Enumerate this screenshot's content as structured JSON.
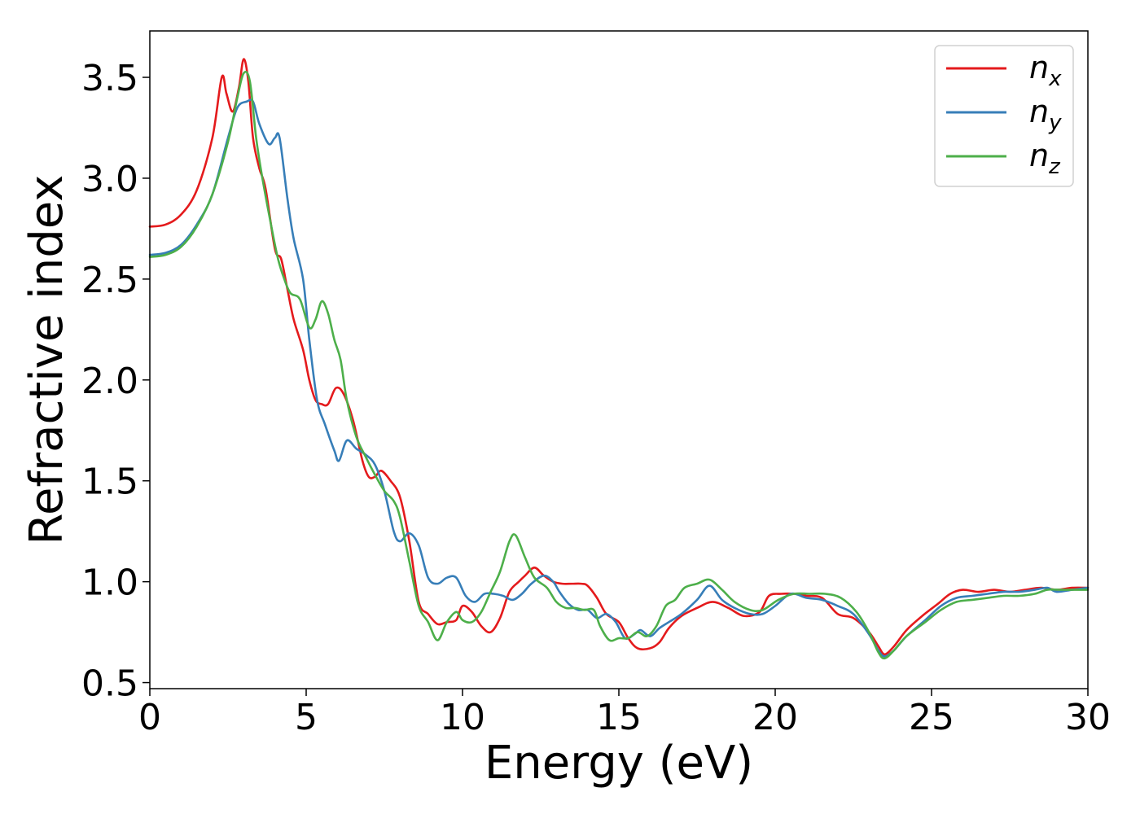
{
  "chart_data": {
    "type": "line",
    "title": "",
    "xlabel": "Energy (eV)",
    "ylabel": "Refractive index",
    "xlim": [
      0,
      30
    ],
    "ylim": [
      0.47,
      3.73
    ],
    "xticks": [
      0,
      5,
      10,
      15,
      20,
      25,
      30
    ],
    "xtick_labels": [
      "0",
      "5",
      "10",
      "15",
      "20",
      "25",
      "30"
    ],
    "yticks": [
      0.5,
      1.0,
      1.5,
      2.0,
      2.5,
      3.0,
      3.5
    ],
    "ytick_labels": [
      "0.5",
      "1.0",
      "1.5",
      "2.0",
      "2.5",
      "3.0",
      "3.5"
    ],
    "grid": false,
    "legend_position": "top-right",
    "series": [
      {
        "name": "n_x",
        "label_base": "n",
        "label_sub": "x",
        "color": "#e41a1c",
        "points": [
          [
            0,
            2.76
          ],
          [
            0.5,
            2.77
          ],
          [
            1.0,
            2.82
          ],
          [
            1.5,
            2.94
          ],
          [
            2.0,
            3.2
          ],
          [
            2.3,
            3.5
          ],
          [
            2.45,
            3.42
          ],
          [
            2.65,
            3.33
          ],
          [
            2.85,
            3.45
          ],
          [
            3.0,
            3.59
          ],
          [
            3.15,
            3.48
          ],
          [
            3.3,
            3.2
          ],
          [
            3.5,
            3.05
          ],
          [
            3.7,
            2.95
          ],
          [
            4.0,
            2.65
          ],
          [
            4.2,
            2.6
          ],
          [
            4.4,
            2.45
          ],
          [
            4.6,
            2.3
          ],
          [
            4.9,
            2.15
          ],
          [
            5.1,
            2.0
          ],
          [
            5.3,
            1.9
          ],
          [
            5.5,
            1.88
          ],
          [
            5.7,
            1.88
          ],
          [
            5.95,
            1.96
          ],
          [
            6.2,
            1.93
          ],
          [
            6.5,
            1.8
          ],
          [
            6.8,
            1.6
          ],
          [
            7.0,
            1.52
          ],
          [
            7.2,
            1.52
          ],
          [
            7.4,
            1.55
          ],
          [
            7.7,
            1.5
          ],
          [
            8.0,
            1.42
          ],
          [
            8.3,
            1.2
          ],
          [
            8.6,
            0.9
          ],
          [
            8.9,
            0.84
          ],
          [
            9.2,
            0.79
          ],
          [
            9.5,
            0.8
          ],
          [
            9.8,
            0.81
          ],
          [
            10.0,
            0.88
          ],
          [
            10.3,
            0.85
          ],
          [
            10.6,
            0.78
          ],
          [
            10.9,
            0.75
          ],
          [
            11.2,
            0.82
          ],
          [
            11.5,
            0.95
          ],
          [
            11.8,
            1.0
          ],
          [
            12.0,
            1.03
          ],
          [
            12.3,
            1.07
          ],
          [
            12.6,
            1.03
          ],
          [
            12.9,
            1.0
          ],
          [
            13.2,
            0.99
          ],
          [
            13.5,
            0.99
          ],
          [
            13.8,
            0.99
          ],
          [
            14.0,
            0.98
          ],
          [
            14.3,
            0.92
          ],
          [
            14.6,
            0.84
          ],
          [
            15.0,
            0.8
          ],
          [
            15.3,
            0.72
          ],
          [
            15.6,
            0.67
          ],
          [
            16.0,
            0.67
          ],
          [
            16.3,
            0.7
          ],
          [
            16.6,
            0.77
          ],
          [
            17.0,
            0.83
          ],
          [
            17.5,
            0.87
          ],
          [
            18.0,
            0.9
          ],
          [
            18.5,
            0.87
          ],
          [
            19.0,
            0.83
          ],
          [
            19.5,
            0.85
          ],
          [
            19.8,
            0.93
          ],
          [
            20.2,
            0.94
          ],
          [
            20.6,
            0.94
          ],
          [
            21.0,
            0.93
          ],
          [
            21.5,
            0.92
          ],
          [
            22.0,
            0.84
          ],
          [
            22.5,
            0.82
          ],
          [
            23.0,
            0.75
          ],
          [
            23.3,
            0.68
          ],
          [
            23.5,
            0.64
          ],
          [
            23.8,
            0.68
          ],
          [
            24.2,
            0.76
          ],
          [
            24.7,
            0.83
          ],
          [
            25.2,
            0.89
          ],
          [
            25.6,
            0.94
          ],
          [
            26.0,
            0.96
          ],
          [
            26.5,
            0.95
          ],
          [
            27.0,
            0.96
          ],
          [
            27.5,
            0.95
          ],
          [
            28.0,
            0.96
          ],
          [
            28.5,
            0.97
          ],
          [
            29.0,
            0.96
          ],
          [
            29.5,
            0.97
          ],
          [
            30,
            0.97
          ]
        ]
      },
      {
        "name": "n_y",
        "label_base": "n",
        "label_sub": "y",
        "color": "#377eb8",
        "points": [
          [
            0,
            2.62
          ],
          [
            0.5,
            2.63
          ],
          [
            1.0,
            2.67
          ],
          [
            1.5,
            2.77
          ],
          [
            2.0,
            2.92
          ],
          [
            2.5,
            3.2
          ],
          [
            2.8,
            3.35
          ],
          [
            3.1,
            3.38
          ],
          [
            3.3,
            3.38
          ],
          [
            3.5,
            3.27
          ],
          [
            3.8,
            3.17
          ],
          [
            4.0,
            3.2
          ],
          [
            4.15,
            3.2
          ],
          [
            4.4,
            2.9
          ],
          [
            4.6,
            2.7
          ],
          [
            4.9,
            2.5
          ],
          [
            5.1,
            2.2
          ],
          [
            5.35,
            1.9
          ],
          [
            5.6,
            1.78
          ],
          [
            5.9,
            1.65
          ],
          [
            6.05,
            1.6
          ],
          [
            6.3,
            1.7
          ],
          [
            6.6,
            1.66
          ],
          [
            6.9,
            1.63
          ],
          [
            7.2,
            1.58
          ],
          [
            7.5,
            1.45
          ],
          [
            7.8,
            1.25
          ],
          [
            8.0,
            1.2
          ],
          [
            8.3,
            1.24
          ],
          [
            8.6,
            1.18
          ],
          [
            8.9,
            1.02
          ],
          [
            9.2,
            0.99
          ],
          [
            9.5,
            1.02
          ],
          [
            9.8,
            1.02
          ],
          [
            10.1,
            0.93
          ],
          [
            10.4,
            0.9
          ],
          [
            10.7,
            0.94
          ],
          [
            11.0,
            0.94
          ],
          [
            11.3,
            0.93
          ],
          [
            11.6,
            0.91
          ],
          [
            11.9,
            0.94
          ],
          [
            12.2,
            0.99
          ],
          [
            12.6,
            1.03
          ],
          [
            12.9,
            1.0
          ],
          [
            13.1,
            0.95
          ],
          [
            13.4,
            0.89
          ],
          [
            13.7,
            0.86
          ],
          [
            14.0,
            0.86
          ],
          [
            14.3,
            0.82
          ],
          [
            14.6,
            0.84
          ],
          [
            14.9,
            0.8
          ],
          [
            15.2,
            0.72
          ],
          [
            15.5,
            0.74
          ],
          [
            15.7,
            0.76
          ],
          [
            16.0,
            0.73
          ],
          [
            16.3,
            0.77
          ],
          [
            16.6,
            0.8
          ],
          [
            17.0,
            0.84
          ],
          [
            17.5,
            0.91
          ],
          [
            17.9,
            0.98
          ],
          [
            18.3,
            0.91
          ],
          [
            18.7,
            0.87
          ],
          [
            19.2,
            0.84
          ],
          [
            19.6,
            0.84
          ],
          [
            20.0,
            0.88
          ],
          [
            20.5,
            0.94
          ],
          [
            21.0,
            0.92
          ],
          [
            21.5,
            0.91
          ],
          [
            22.0,
            0.88
          ],
          [
            22.5,
            0.84
          ],
          [
            23.0,
            0.74
          ],
          [
            23.3,
            0.66
          ],
          [
            23.5,
            0.63
          ],
          [
            23.8,
            0.66
          ],
          [
            24.2,
            0.73
          ],
          [
            24.8,
            0.81
          ],
          [
            25.3,
            0.88
          ],
          [
            25.8,
            0.92
          ],
          [
            26.3,
            0.93
          ],
          [
            26.8,
            0.94
          ],
          [
            27.3,
            0.95
          ],
          [
            27.8,
            0.95
          ],
          [
            28.3,
            0.96
          ],
          [
            28.7,
            0.97
          ],
          [
            29.0,
            0.95
          ],
          [
            29.5,
            0.96
          ],
          [
            30,
            0.97
          ]
        ]
      },
      {
        "name": "n_z",
        "label_base": "n",
        "label_sub": "z",
        "color": "#4daf4a",
        "points": [
          [
            0,
            2.61
          ],
          [
            0.5,
            2.62
          ],
          [
            1.0,
            2.66
          ],
          [
            1.5,
            2.76
          ],
          [
            2.0,
            2.92
          ],
          [
            2.5,
            3.18
          ],
          [
            2.8,
            3.4
          ],
          [
            3.0,
            3.52
          ],
          [
            3.2,
            3.48
          ],
          [
            3.4,
            3.2
          ],
          [
            3.6,
            3.0
          ],
          [
            3.9,
            2.75
          ],
          [
            4.1,
            2.6
          ],
          [
            4.3,
            2.5
          ],
          [
            4.5,
            2.43
          ],
          [
            4.8,
            2.4
          ],
          [
            5.1,
            2.26
          ],
          [
            5.3,
            2.3
          ],
          [
            5.5,
            2.39
          ],
          [
            5.7,
            2.33
          ],
          [
            5.9,
            2.2
          ],
          [
            6.1,
            2.1
          ],
          [
            6.3,
            1.9
          ],
          [
            6.6,
            1.72
          ],
          [
            6.9,
            1.62
          ],
          [
            7.2,
            1.53
          ],
          [
            7.5,
            1.45
          ],
          [
            7.8,
            1.4
          ],
          [
            8.0,
            1.32
          ],
          [
            8.3,
            1.1
          ],
          [
            8.6,
            0.88
          ],
          [
            8.9,
            0.8
          ],
          [
            9.2,
            0.71
          ],
          [
            9.5,
            0.8
          ],
          [
            9.8,
            0.85
          ],
          [
            10.0,
            0.81
          ],
          [
            10.3,
            0.8
          ],
          [
            10.6,
            0.85
          ],
          [
            10.9,
            0.95
          ],
          [
            11.2,
            1.05
          ],
          [
            11.5,
            1.2
          ],
          [
            11.7,
            1.23
          ],
          [
            12.0,
            1.12
          ],
          [
            12.3,
            1.02
          ],
          [
            12.7,
            0.97
          ],
          [
            13.0,
            0.9
          ],
          [
            13.3,
            0.87
          ],
          [
            13.6,
            0.87
          ],
          [
            13.9,
            0.86
          ],
          [
            14.2,
            0.86
          ],
          [
            14.4,
            0.78
          ],
          [
            14.7,
            0.71
          ],
          [
            15.0,
            0.72
          ],
          [
            15.3,
            0.72
          ],
          [
            15.6,
            0.75
          ],
          [
            15.9,
            0.73
          ],
          [
            16.2,
            0.78
          ],
          [
            16.5,
            0.88
          ],
          [
            16.8,
            0.91
          ],
          [
            17.1,
            0.97
          ],
          [
            17.5,
            0.99
          ],
          [
            17.9,
            1.01
          ],
          [
            18.3,
            0.96
          ],
          [
            18.7,
            0.9
          ],
          [
            19.2,
            0.86
          ],
          [
            19.6,
            0.86
          ],
          [
            20.1,
            0.91
          ],
          [
            20.6,
            0.94
          ],
          [
            21.1,
            0.94
          ],
          [
            21.6,
            0.94
          ],
          [
            22.1,
            0.92
          ],
          [
            22.6,
            0.85
          ],
          [
            23.0,
            0.75
          ],
          [
            23.3,
            0.65
          ],
          [
            23.5,
            0.62
          ],
          [
            23.8,
            0.66
          ],
          [
            24.2,
            0.73
          ],
          [
            24.8,
            0.8
          ],
          [
            25.3,
            0.86
          ],
          [
            25.8,
            0.9
          ],
          [
            26.3,
            0.91
          ],
          [
            26.8,
            0.92
          ],
          [
            27.3,
            0.93
          ],
          [
            27.8,
            0.93
          ],
          [
            28.3,
            0.94
          ],
          [
            28.7,
            0.96
          ],
          [
            29.1,
            0.96
          ],
          [
            29.6,
            0.96
          ],
          [
            30,
            0.96
          ]
        ]
      }
    ]
  }
}
